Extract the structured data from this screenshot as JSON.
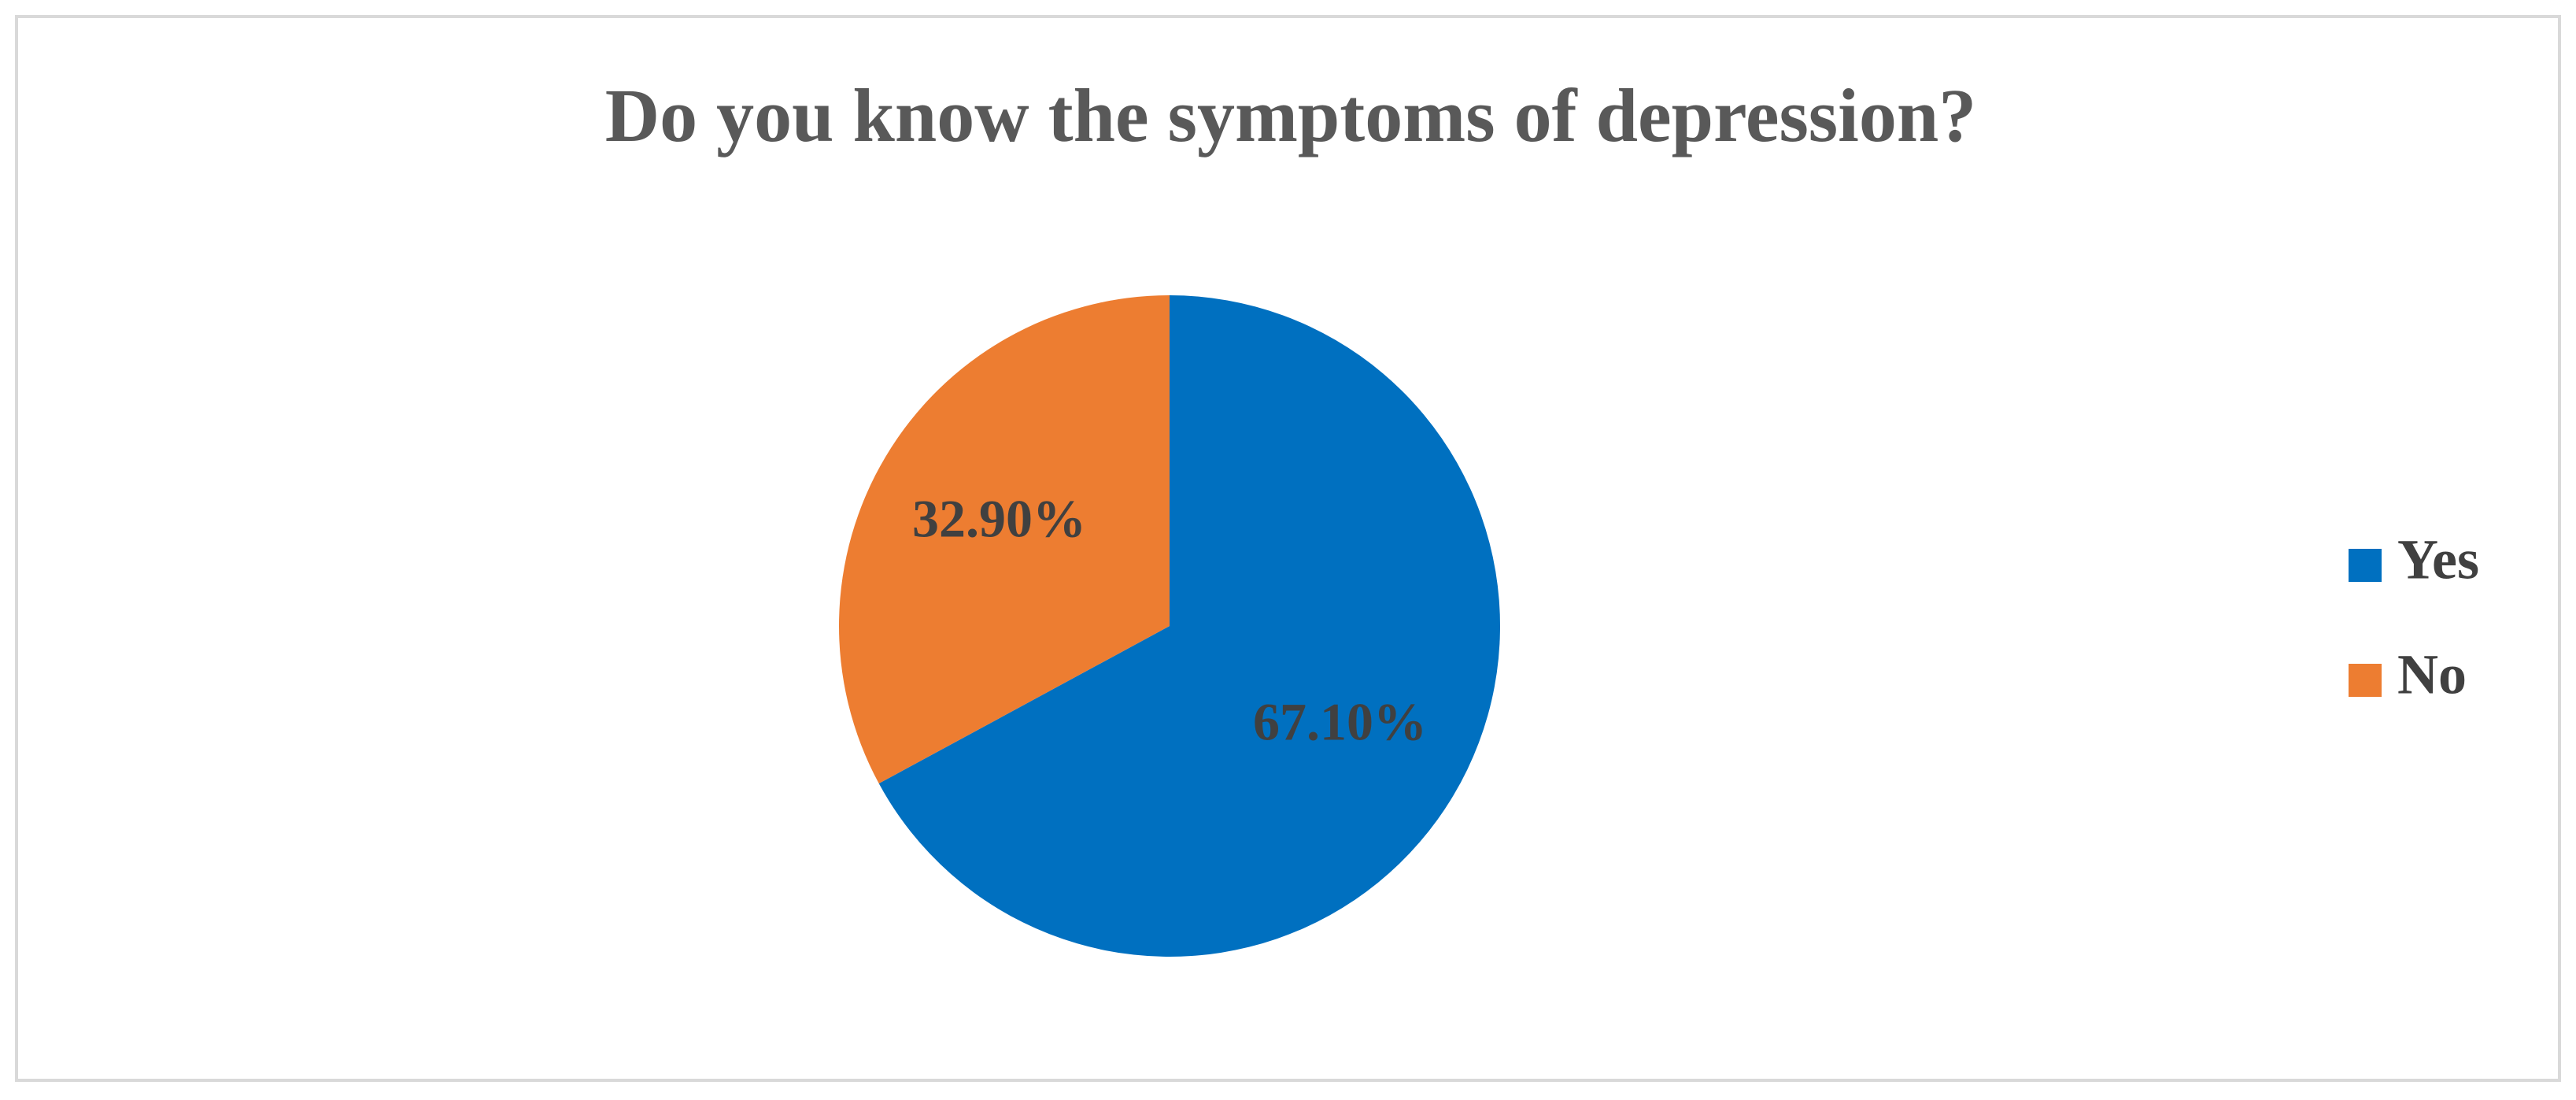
{
  "chart_data": {
    "type": "pie",
    "title": "Do you know the symptoms of depression?",
    "categories": [
      "Yes",
      "No"
    ],
    "values": [
      67.1,
      32.9
    ],
    "value_labels": [
      "67.10%",
      "32.90%"
    ],
    "colors": [
      "#0070c0",
      "#ed7d31"
    ],
    "legend": "right"
  }
}
